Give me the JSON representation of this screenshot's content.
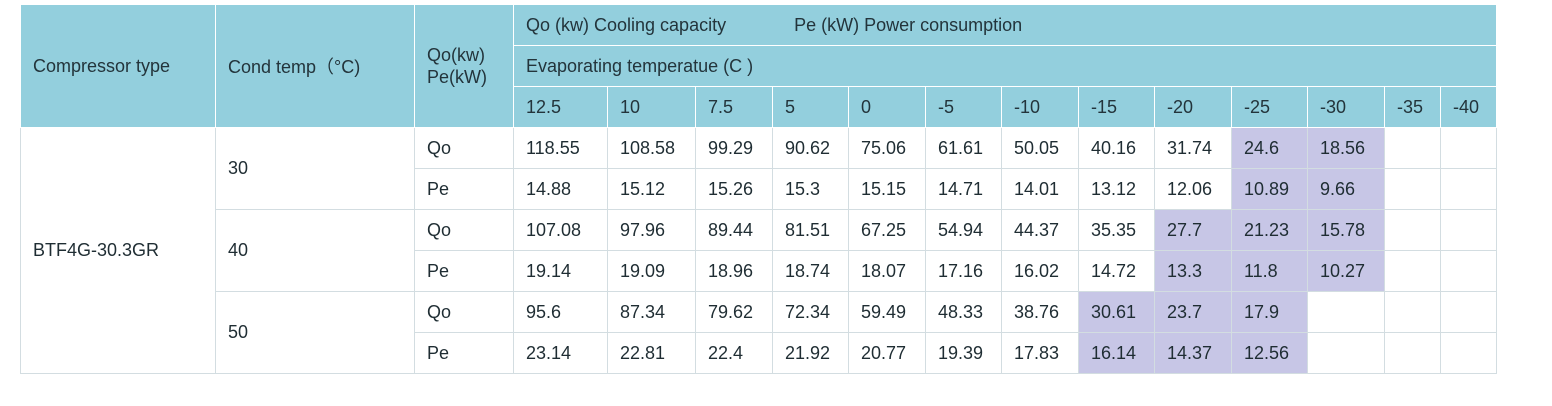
{
  "header": {
    "compressor_type": "Compressor type",
    "cond_temp": "Cond temp（°C)",
    "units_line1": "Qo(kw)",
    "units_line2": "Pe(kW)",
    "legend_qo": "Qo (kw)   Cooling capacity",
    "legend_pe": "Pe (kW)   Power consumption",
    "evap_title": "Evaporating temperatue (C )",
    "evap_temps": [
      "12.5",
      "10",
      "7.5",
      "5",
      "0",
      "-5",
      "-10",
      "-15",
      "-20",
      "-25",
      "-30",
      "-35",
      "-40"
    ]
  },
  "highlight_color": "#c7c6e6",
  "header_color": "#93cfdd",
  "rows": {
    "model": "BTF4G-30.3GR",
    "groups": [
      {
        "cond_temp": "30",
        "qo_label": "Qo",
        "pe_label": "Pe",
        "qo": [
          "118.55",
          "108.58",
          "99.29",
          "90.62",
          "75.06",
          "61.61",
          "50.05",
          "40.16",
          "31.74",
          "24.6",
          "18.56",
          "",
          ""
        ],
        "pe": [
          "14.88",
          "15.12",
          "15.26",
          "15.3",
          "15.15",
          "14.71",
          "14.01",
          "13.12",
          "12.06",
          "10.89",
          "9.66",
          "",
          ""
        ]
      },
      {
        "cond_temp": "40",
        "qo_label": "Qo",
        "pe_label": "Pe",
        "qo": [
          "107.08",
          "97.96",
          "89.44",
          "81.51",
          "67.25",
          "54.94",
          "44.37",
          "35.35",
          "27.7",
          "21.23",
          "15.78",
          "",
          ""
        ],
        "pe": [
          "19.14",
          "19.09",
          "18.96",
          "18.74",
          "18.07",
          "17.16",
          "16.02",
          "14.72",
          "13.3",
          "11.8",
          "10.27",
          "",
          ""
        ]
      },
      {
        "cond_temp": "50",
        "qo_label": "Qo",
        "pe_label": "Pe",
        "qo": [
          "95.6",
          "87.34",
          "79.62",
          "72.34",
          "59.49",
          "48.33",
          "38.76",
          "30.61",
          "23.7",
          "17.9",
          "",
          "",
          ""
        ],
        "pe": [
          "23.14",
          "22.81",
          "22.4",
          "21.92",
          "20.77",
          "19.39",
          "17.83",
          "16.14",
          "14.37",
          "12.56",
          "",
          "",
          ""
        ]
      }
    ]
  }
}
